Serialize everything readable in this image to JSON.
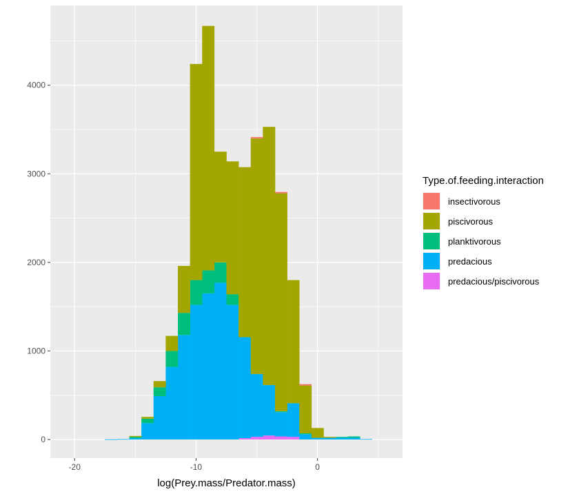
{
  "chart_data": {
    "type": "bar",
    "stacked": true,
    "xlabel": "log(Prey.mass/Predator.mass)",
    "ylabel": "",
    "xlim": [
      -22,
      7
    ],
    "ylim": [
      -210,
      4900
    ],
    "x_ticks": [
      -20,
      -10,
      0
    ],
    "y_ticks": [
      0,
      1000,
      2000,
      3000,
      4000
    ],
    "bin_width": 1,
    "bin_starts": [
      -20.5,
      -19.5,
      -18.5,
      -17.5,
      -16.5,
      -15.5,
      -14.5,
      -13.5,
      -12.5,
      -11.5,
      -10.5,
      -9.5,
      -8.5,
      -7.5,
      -6.5,
      -5.5,
      -4.5,
      -3.5,
      -2.5,
      -1.5,
      -0.5,
      0.5,
      1.5,
      2.5,
      3.5
    ],
    "grid": true,
    "legend": {
      "title": "Type.of.feeding.interaction",
      "position": "right"
    },
    "series": [
      {
        "name": "predacious/piscivorous",
        "color": "#E76BF3",
        "values": [
          0,
          0,
          0,
          0,
          0,
          0,
          0,
          0,
          0,
          0,
          0,
          0,
          0,
          0,
          15,
          30,
          45,
          35,
          30,
          0,
          0,
          0,
          0,
          0,
          0
        ]
      },
      {
        "name": "predacious",
        "color": "#00B0F6",
        "values": [
          0,
          0,
          0,
          2,
          5,
          15,
          185,
          490,
          820,
          1180,
          1520,
          1650,
          1770,
          1520,
          1140,
          710,
          570,
          275,
          380,
          60,
          20,
          20,
          20,
          20,
          5
        ]
      },
      {
        "name": "planktivorous",
        "color": "#00BF7D",
        "values": [
          0,
          0,
          0,
          0,
          0,
          15,
          50,
          100,
          180,
          250,
          280,
          260,
          230,
          120,
          0,
          0,
          0,
          10,
          0,
          10,
          0,
          0,
          10,
          15,
          0
        ]
      },
      {
        "name": "piscivorous",
        "color": "#A3A500",
        "values": [
          0,
          0,
          0,
          0,
          0,
          10,
          20,
          70,
          170,
          530,
          2440,
          2760,
          1250,
          1500,
          1920,
          2660,
          2915,
          2460,
          1390,
          540,
          110,
          10,
          0,
          0,
          0
        ]
      },
      {
        "name": "insectivorous",
        "color": "#F8766D",
        "values": [
          0,
          0,
          0,
          0,
          0,
          0,
          0,
          0,
          0,
          0,
          0,
          0,
          0,
          0,
          0,
          15,
          0,
          15,
          0,
          15,
          0,
          0,
          0,
          0,
          0
        ]
      }
    ],
    "legend_order": [
      "insectivorous",
      "piscivorous",
      "planktivorous",
      "predacious",
      "predacious/piscivorous"
    ]
  }
}
